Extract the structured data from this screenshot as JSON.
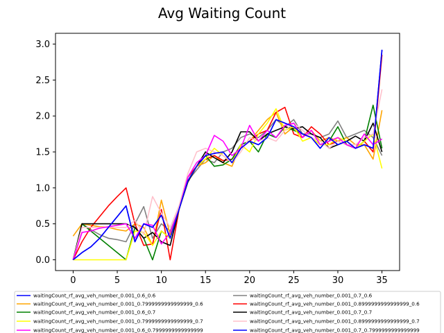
{
  "chart_data": {
    "type": "line",
    "title": "Avg Waiting Count",
    "xlabel": "",
    "ylabel": "",
    "xlim": [
      -2,
      37
    ],
    "ylim": [
      -0.15,
      3.15
    ],
    "xticks": [
      0,
      5,
      10,
      15,
      20,
      25,
      30,
      35
    ],
    "yticks": [
      0.0,
      0.5,
      1.0,
      1.5,
      2.0,
      2.5,
      3.0
    ],
    "xtick_labels": [
      "0",
      "5",
      "10",
      "15",
      "20",
      "25",
      "30",
      "35"
    ],
    "ytick_labels": [
      "0.0",
      "0.5",
      "1.0",
      "1.5",
      "2.0",
      "2.5",
      "3.0"
    ],
    "grid": false,
    "legend_position": "bottom",
    "x": [
      0,
      1,
      2,
      3,
      4,
      5,
      6,
      7,
      8,
      9,
      10,
      11,
      12,
      13,
      14,
      15,
      16,
      17,
      18,
      19,
      20,
      21,
      22,
      23,
      24,
      25,
      26,
      27,
      28,
      29,
      30,
      31,
      32,
      33,
      34,
      35
    ],
    "series": [
      {
        "name": "waitingCount_rf_avg_veh_number_0.001_0.6_0.6",
        "color": "#0000ff",
        "values": [
          0.0,
          0.1,
          0.18,
          0.3,
          0.45,
          0.6,
          0.75,
          0.25,
          0.5,
          0.45,
          0.62,
          0.3,
          0.7,
          1.1,
          1.3,
          1.45,
          1.48,
          1.5,
          1.35,
          1.55,
          1.65,
          1.6,
          1.7,
          1.95,
          1.9,
          1.85,
          1.75,
          1.7,
          1.55,
          1.7,
          1.6,
          1.65,
          1.55,
          1.6,
          1.55,
          2.92
        ]
      },
      {
        "name": "waitingCount_rf_avg_veh_number_0.001_0.7_0.6",
        "color": "#808080",
        "values": [
          0.0,
          0.5,
          0.42,
          0.35,
          0.3,
          0.28,
          0.25,
          0.5,
          0.74,
          0.3,
          0.5,
          0.4,
          0.7,
          1.1,
          1.25,
          1.4,
          1.35,
          1.5,
          1.55,
          1.7,
          1.75,
          1.7,
          1.8,
          1.95,
          1.85,
          1.95,
          1.75,
          1.75,
          1.7,
          1.75,
          1.93,
          1.7,
          1.75,
          1.8,
          1.7,
          1.45
        ]
      },
      {
        "name": "waitingCount_rf_avg_veh_number_0.001_0.7999999999999999_0.6",
        "color": "#ffa500",
        "values": [
          0.33,
          0.5,
          0.48,
          0.46,
          0.45,
          0.42,
          0.4,
          0.5,
          0.45,
          0.2,
          0.83,
          0.35,
          0.7,
          1.1,
          1.3,
          1.35,
          1.45,
          1.35,
          1.3,
          1.6,
          1.65,
          1.8,
          1.95,
          2.05,
          1.75,
          1.85,
          1.7,
          1.8,
          1.65,
          1.7,
          1.65,
          1.7,
          1.6,
          1.6,
          1.4,
          2.08
        ]
      },
      {
        "name": "waitingCount_rf_avg_veh_number_0.001_0.8999999999999999_0.6",
        "color": "#ff0000",
        "values": [
          0.0,
          0.25,
          0.45,
          0.6,
          0.75,
          0.88,
          1.0,
          0.5,
          0.2,
          0.22,
          0.7,
          0.0,
          0.7,
          1.15,
          1.3,
          1.4,
          1.45,
          1.38,
          1.4,
          1.55,
          1.65,
          1.75,
          1.8,
          2.05,
          2.12,
          1.75,
          1.7,
          1.85,
          1.75,
          1.6,
          1.65,
          1.6,
          1.55,
          1.65,
          1.5,
          2.85
        ]
      },
      {
        "name": "waitingCount_rf_avg_veh_number_0.001_0.6_0.7",
        "color": "#008000",
        "values": [
          0.0,
          0.5,
          0.4,
          0.3,
          0.2,
          0.1,
          0.0,
          0.45,
          0.3,
          0.0,
          0.4,
          0.3,
          0.7,
          1.1,
          1.3,
          1.45,
          1.3,
          1.32,
          1.4,
          1.6,
          1.65,
          1.5,
          1.75,
          1.7,
          1.85,
          1.8,
          1.75,
          1.7,
          1.6,
          1.65,
          1.85,
          1.6,
          1.55,
          1.65,
          2.15,
          1.55
        ]
      },
      {
        "name": "waitingCount_rf_avg_veh_number_0.001_0.7_0.7",
        "color": "#000000",
        "values": [
          0.0,
          0.5,
          0.5,
          0.5,
          0.5,
          0.5,
          0.5,
          0.45,
          0.3,
          0.38,
          0.25,
          0.2,
          0.7,
          1.08,
          1.3,
          1.5,
          1.42,
          1.35,
          1.5,
          1.78,
          1.78,
          1.65,
          1.75,
          1.8,
          1.85,
          1.82,
          1.85,
          1.75,
          1.7,
          1.55,
          1.6,
          1.65,
          1.72,
          1.65,
          1.9,
          1.5
        ]
      },
      {
        "name": "waitingCount_rf_avg_veh_number_0.001_0.7999999999999999_0.7",
        "color": "#ffff00",
        "values": [
          0.0,
          0.0,
          0.0,
          0.0,
          0.0,
          0.0,
          0.0,
          0.4,
          0.38,
          0.2,
          0.4,
          0.3,
          0.7,
          1.1,
          1.3,
          1.4,
          1.55,
          1.45,
          1.35,
          1.6,
          1.5,
          1.75,
          1.9,
          2.1,
          1.8,
          1.85,
          1.65,
          1.7,
          1.6,
          1.6,
          1.7,
          1.65,
          1.55,
          1.65,
          1.75,
          1.27
        ]
      },
      {
        "name": "waitingCount_rf_avg_veh_number_0.001_0.8999999999999999_0.7",
        "color": "#ffc0cb",
        "values": [
          0.0,
          0.45,
          0.45,
          0.45,
          0.45,
          0.45,
          0.45,
          0.55,
          0.35,
          0.88,
          0.65,
          0.45,
          0.75,
          1.2,
          1.5,
          1.55,
          1.5,
          1.45,
          1.35,
          1.5,
          1.7,
          1.65,
          1.7,
          1.65,
          1.8,
          1.9,
          1.8,
          1.7,
          1.65,
          1.55,
          1.65,
          1.6,
          1.6,
          1.7,
          1.75,
          2.37
        ]
      },
      {
        "name": "waitingCount_rf_avg_veh_number_0.001_0.6_0.7999999999999999",
        "color": "#ff00ff",
        "values": [
          0.0,
          0.38,
          0.4,
          0.44,
          0.46,
          0.48,
          0.5,
          0.3,
          0.5,
          0.48,
          0.22,
          0.38,
          0.7,
          1.15,
          1.35,
          1.45,
          1.73,
          1.65,
          1.45,
          1.55,
          1.87,
          1.65,
          1.8,
          1.7,
          1.87,
          1.9,
          1.7,
          1.8,
          1.6,
          1.65,
          1.7,
          1.6,
          1.55,
          1.75,
          1.6,
          1.68
        ]
      },
      {
        "name": "waitingCount_rf_avg_veh_number_0.001_0.7_0.7999999999999999",
        "color": "#0000ff",
        "values": [
          0.0,
          0.1,
          0.18,
          0.3,
          0.45,
          0.6,
          0.75,
          0.25,
          0.5,
          0.45,
          0.62,
          0.3,
          0.7,
          1.1,
          1.3,
          1.45,
          1.48,
          1.5,
          1.35,
          1.55,
          1.65,
          1.6,
          1.7,
          1.95,
          1.9,
          1.85,
          1.75,
          1.7,
          1.55,
          1.7,
          1.6,
          1.65,
          1.55,
          1.6,
          1.55,
          2.92
        ]
      }
    ]
  }
}
